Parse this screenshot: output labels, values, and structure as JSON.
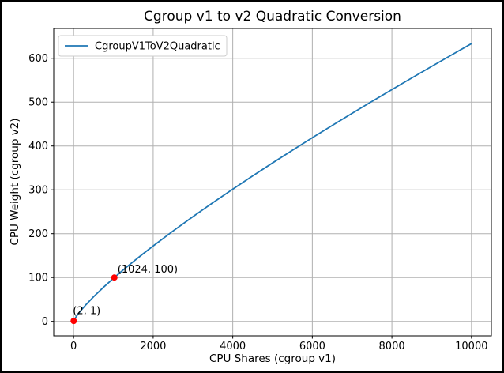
{
  "chart_data": {
    "type": "line",
    "title": "Cgroup v1 to v2 Quadratic Conversion",
    "xlabel": "CPU Shares (cgroup v1)",
    "ylabel": "CPU Weight (cgroup v2)",
    "xlim": [
      -500,
      10500
    ],
    "ylim": [
      -33,
      668
    ],
    "xticks": [
      0,
      2000,
      4000,
      6000,
      8000,
      10000
    ],
    "yticks": [
      0,
      100,
      200,
      300,
      400,
      500,
      600
    ],
    "grid": true,
    "grid_color": "#b0b0b0",
    "spine_color": "#000000",
    "text_color": "#000000",
    "frame_color": "#000000",
    "background_color": "#ffffff",
    "legend": {
      "position": "upper-left",
      "edge_color": "#cccccc",
      "entries": [
        {
          "label": "CgroupV1ToV2Quadratic",
          "color": "#1f77b4"
        }
      ]
    },
    "series": [
      {
        "name": "CgroupV1ToV2Quadratic",
        "color": "#1f77b4",
        "x": [
          2,
          50,
          100,
          200,
          300,
          500,
          750,
          1024,
          1250,
          1500,
          1750,
          2000,
          2500,
          3000,
          3500,
          4000,
          4500,
          5000,
          5500,
          6000,
          6500,
          7000,
          7500,
          8000,
          8500,
          9000,
          9500,
          10000
        ],
        "y": [
          1,
          8.7,
          15.2,
          26.6,
          37.0,
          56.0,
          77.7,
          100,
          117.5,
          136.2,
          154.4,
          172.0,
          206.1,
          238.9,
          270.6,
          301.5,
          331.7,
          361.3,
          390.3,
          418.8,
          446.8,
          474.5,
          501.7,
          528.6,
          555.2,
          581.5,
          607.6,
          633.4
        ]
      }
    ],
    "annotated_points": [
      {
        "x": 2,
        "y": 1,
        "label": "(2, 1)",
        "color": "#ff0000"
      },
      {
        "x": 1024,
        "y": 100,
        "label": "(1024, 100)",
        "color": "#ff0000"
      }
    ]
  }
}
